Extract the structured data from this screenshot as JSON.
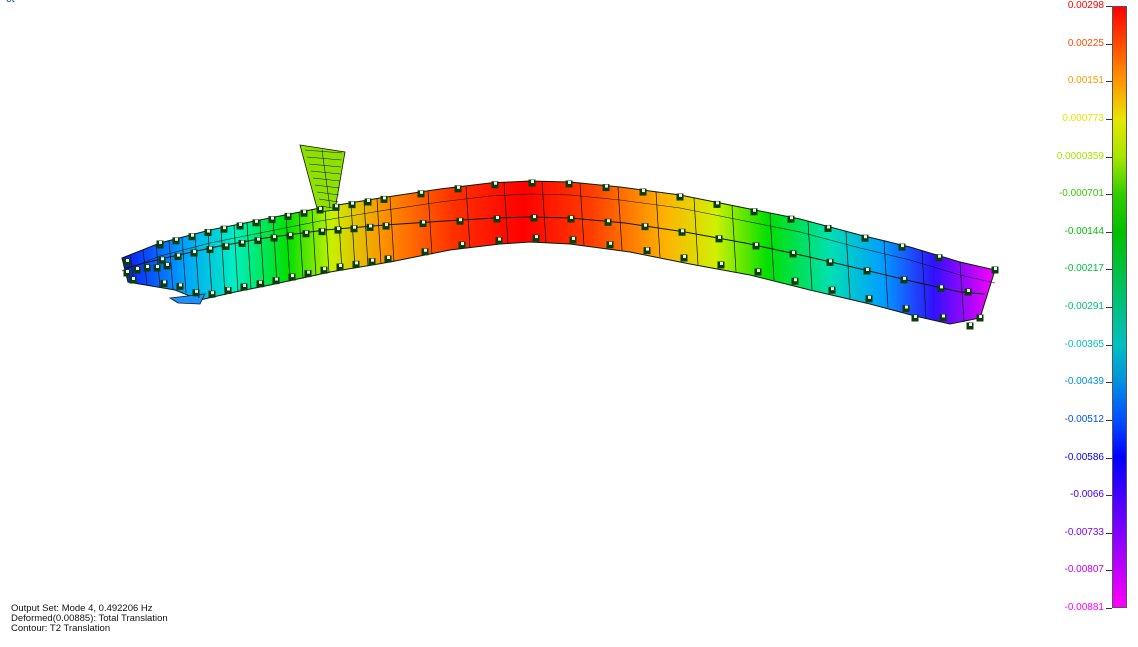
{
  "corner_label": "ct",
  "legend": {
    "labels": [
      "0.00298",
      "0.00225",
      "0.00151",
      "0.000773",
      "0.0000359",
      "-0.000701",
      "-0.00144",
      "-0.00217",
      "-0.00291",
      "-0.00365",
      "-0.00439",
      "-0.00512",
      "-0.00586",
      "-0.0066",
      "-0.00733",
      "-0.00807",
      "-0.00881"
    ],
    "label_colors": [
      "#ff0000",
      "#ff4d00",
      "#ff9900",
      "#e6e600",
      "#a6e600",
      "#33cc00",
      "#00c000",
      "#00c040",
      "#00c080",
      "#00c0c0",
      "#0090e0",
      "#0050ff",
      "#0000ff",
      "#4000ff",
      "#8000ff",
      "#c000ff",
      "#ff00ff"
    ]
  },
  "info": {
    "line1": "Output Set: Mode 4, 0.492206 Hz",
    "line2": "Deformed(0.00885): Total Translation",
    "line3": "Contour: T2 Translation"
  },
  "colors": {
    "node_outer": "#0a3d0a",
    "node_inner": "#f2f2f2",
    "mesh_line": "#0a1a0a"
  }
}
